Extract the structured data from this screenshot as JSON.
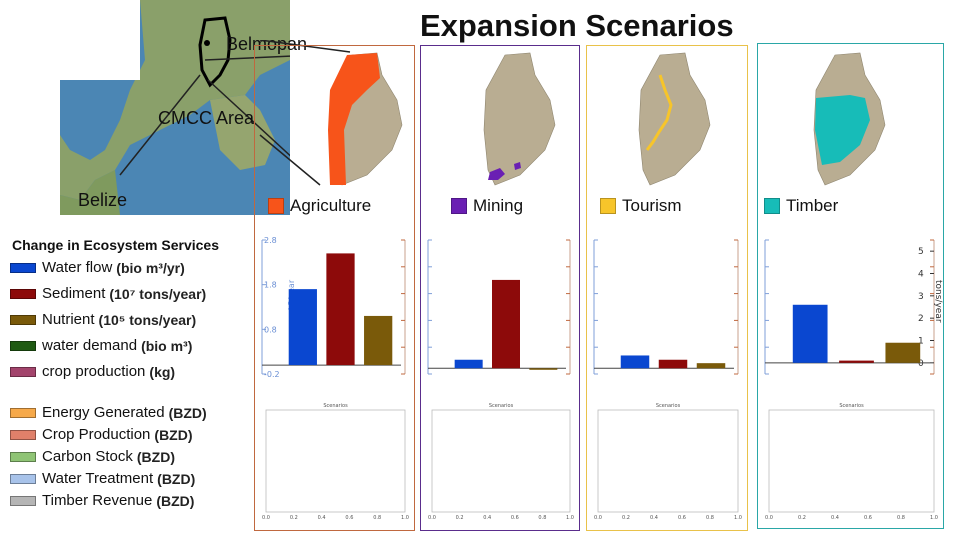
{
  "title": "Expansion Scenarios",
  "locator": {
    "label_capital": "Belmopan",
    "label_area": "CMCC Area",
    "label_country": "Belize"
  },
  "scenarios": [
    {
      "name": "Agriculture",
      "color": "#f7541a",
      "border": "#c0683f"
    },
    {
      "name": "Mining",
      "color": "#6a1fb3",
      "border": "#5a2d8c"
    },
    {
      "name": "Tourism",
      "color": "#f7c52a",
      "border": "#e9c24a"
    },
    {
      "name": "Timber",
      "color": "#17bcb8",
      "border": "#2aa7a7"
    }
  ],
  "legend": {
    "title": "Change in Ecosystem Services",
    "services": [
      {
        "label": "Water flow",
        "unit": "(bio m³/yr)",
        "color": "#0a47d0"
      },
      {
        "label": "Sediment",
        "unit": "(10⁷ tons/year)",
        "color": "#8d0a0a"
      },
      {
        "label": "Nutrient",
        "unit": "(10⁵ tons/year)",
        "color": "#7a5a0a"
      },
      {
        "label": "water demand",
        "unit": "(bio m³)",
        "color": "#1f5a12"
      },
      {
        "label": "crop production",
        "unit": "(kg)",
        "color": "#a3446c"
      }
    ],
    "values": [
      {
        "label": "Energy Generated",
        "unit": "(BZD)",
        "color": "#f6a94a"
      },
      {
        "label": "Crop Production",
        "unit": "(BZD)",
        "color": "#e0806a"
      },
      {
        "label": "Carbon Stock",
        "unit": "(BZD)",
        "color": "#8fc475"
      },
      {
        "label": "Water Treatment",
        "unit": "(BZD)",
        "color": "#a8c3ea"
      },
      {
        "label": "Timber Revenue",
        "unit": "(BZD)",
        "color": "#b5b5b5"
      }
    ]
  },
  "chart_data": [
    {
      "type": "bar",
      "scenario": "Agriculture",
      "categories": [
        "Water flow",
        "Sediment",
        "Nutrient"
      ],
      "values": [
        1.7,
        2.5,
        1.1
      ],
      "ylim": [
        -0.2,
        2.8
      ],
      "yticks": [
        -0.2,
        0.8,
        1.8,
        2.8
      ],
      "ylabel": "m^3/year"
    },
    {
      "type": "bar",
      "scenario": "Mining",
      "categories": [
        "Water flow",
        "Sediment",
        "Nutrient"
      ],
      "values": [
        0.3,
        3.1,
        -0.05
      ],
      "ylim": [
        -0.2,
        4.5
      ]
    },
    {
      "type": "bar",
      "scenario": "Tourism",
      "categories": [
        "Water flow",
        "Sediment",
        "Nutrient"
      ],
      "values": [
        0.45,
        0.3,
        0.18
      ],
      "ylim": [
        -0.2,
        4.5
      ]
    },
    {
      "type": "bar",
      "scenario": "Timber",
      "categories": [
        "Water flow",
        "Sediment",
        "Nutrient"
      ],
      "values": [
        2.6,
        0.1,
        0.9
      ],
      "ylim": [
        -0.5,
        5.5
      ],
      "yticks": [
        0,
        1,
        2,
        3,
        4,
        5
      ],
      "ylabel_right": "tons/year"
    }
  ],
  "empty_chart": {
    "title": "Scenarios",
    "xticks": [
      "0.0",
      "0.2",
      "0.4",
      "0.6",
      "0.8",
      "1.0"
    ]
  }
}
